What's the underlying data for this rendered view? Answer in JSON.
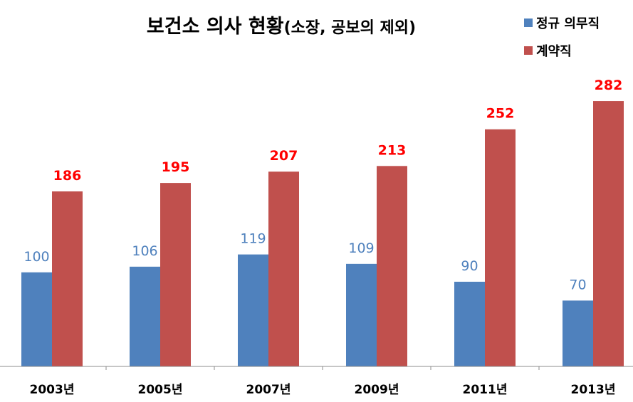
{
  "chart_data": {
    "type": "bar",
    "title": "보건소 의사 현황",
    "title_suffix": "(소장, 공보의 제외)",
    "categories": [
      "2003년",
      "2005년",
      "2007년",
      "2009년",
      "2011년",
      "2013년"
    ],
    "series": [
      {
        "name": "정규 의무직",
        "color": "#4f81bd",
        "label_color": "#4f81bd",
        "values": [
          100,
          106,
          119,
          109,
          90,
          70
        ]
      },
      {
        "name": "계약직",
        "color": "#c0504d",
        "label_color": "#ff0000",
        "values": [
          186,
          195,
          207,
          213,
          252,
          282
        ]
      }
    ],
    "xlabel": "",
    "ylabel": "",
    "ylim": [
      0,
      300
    ],
    "y_axis_visible": false,
    "grid": false,
    "legend_position": "top-right"
  }
}
